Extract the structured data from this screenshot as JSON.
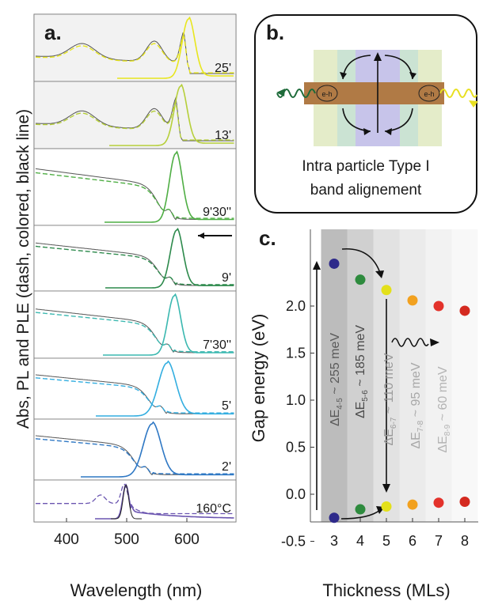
{
  "panel_a": {
    "label": "a.",
    "ylabel": "Abs, PL and PLE (dash, colored, black line)",
    "xlabel": "Wavelength (nm)",
    "x_ticks": [
      "400",
      "500",
      "600"
    ],
    "traces": [
      {
        "time": "25'",
        "color": "#e8e61e"
      },
      {
        "time": "13'",
        "color": "#b6cf3a"
      },
      {
        "time": "9'30''",
        "color": "#4fae44"
      },
      {
        "time": "9'",
        "color": "#2d8a4c"
      },
      {
        "time": "7'30''",
        "color": "#3bb8b0"
      },
      {
        "time": "5'",
        "color": "#33aee0"
      },
      {
        "time": "2'",
        "color": "#2f78c4"
      },
      {
        "time": "160°C",
        "color": "#6b55b0"
      }
    ]
  },
  "panel_b": {
    "label": "b.",
    "caption_line1": "Intra particle Type I",
    "caption_line2": "band alignement",
    "exciton_label": "e-h"
  },
  "chart_data": {
    "type": "scatter",
    "title": "c.",
    "xlabel": "Thickness (MLs)",
    "ylabel": "Gap energy (eV)",
    "x": [
      3,
      4,
      5,
      6,
      7,
      8
    ],
    "y_ticks": [
      "-0.5",
      "0.0",
      "0.5",
      "1.0",
      "1.5",
      "2.0"
    ],
    "ylim": [
      -0.5,
      2.6
    ],
    "series": [
      {
        "values": [
          2.45,
          2.28,
          2.17,
          2.06,
          2.0,
          1.95
        ]
      },
      {
        "values": [
          -0.25,
          -0.16,
          -0.13,
          -0.11,
          -0.09,
          -0.08
        ]
      }
    ],
    "point_colors": [
      "#2e2a8a",
      "#2e8b3e",
      "#e3e01a",
      "#f2a11f",
      "#e3322b",
      "#d42a20"
    ],
    "annotations": [
      {
        "main": "ΔE",
        "sub": "4-5",
        "rest": " ~ 255 meV"
      },
      {
        "main": "ΔE",
        "sub": "5-6",
        "rest": " ~ 185 meV"
      },
      {
        "main": "ΔE",
        "sub": "6-7",
        "rest": " ~ 110 meV"
      },
      {
        "main": "ΔE",
        "sub": "7-8",
        "rest": " ~ 95 meV"
      },
      {
        "main": "ΔE",
        "sub": "8-9",
        "rest": " ~ 60 meV"
      }
    ]
  }
}
